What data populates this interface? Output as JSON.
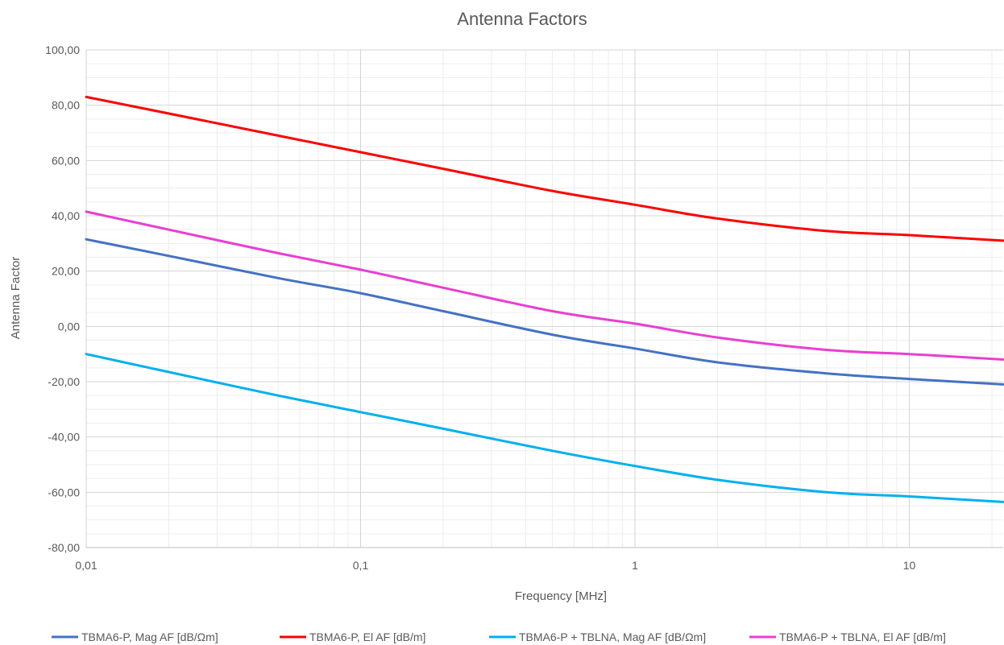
{
  "chart_data": {
    "type": "line",
    "title": "Antenna Factors",
    "xlabel": "Frequency [MHz]",
    "ylabel": "Antenna Factor",
    "x_scale": "log",
    "xlim": [
      0.01,
      22
    ],
    "ylim": [
      -80,
      100
    ],
    "x_ticks": [
      0.01,
      0.1,
      1,
      10
    ],
    "x_tick_labels": [
      "0,01",
      "0,1",
      "1",
      "10"
    ],
    "y_ticks": [
      100,
      80,
      60,
      40,
      20,
      0,
      -20,
      -40,
      -60,
      -80
    ],
    "y_tick_labels": [
      "100,00",
      "80,00",
      "60,00",
      "40,00",
      "20,00",
      "0,00",
      "-20,00",
      "-40,00",
      "-60,00",
      "-80,00"
    ],
    "grid": "major and minor",
    "legend_position": "bottom",
    "series": [
      {
        "name": "TBMA6-P, Mag AF [dB/Ωm]",
        "color": "#4472C4",
        "x": [
          0.01,
          0.02,
          0.05,
          0.1,
          0.2,
          0.5,
          1,
          2,
          5,
          10,
          22
        ],
        "y": [
          31.5,
          25.5,
          17.5,
          12,
          5.5,
          -3,
          -8,
          -13,
          -17,
          -19,
          -21
        ]
      },
      {
        "name": "TBMA6-P, El AF [dB/m]",
        "color": "#FF0000",
        "x": [
          0.01,
          0.02,
          0.05,
          0.1,
          0.2,
          0.5,
          1,
          2,
          5,
          10,
          22
        ],
        "y": [
          83,
          77,
          69,
          63,
          57,
          49,
          44,
          39,
          34.5,
          33,
          31
        ]
      },
      {
        "name": "TBMA6-P + TBLNA, Mag AF [dB/Ωm]",
        "color": "#00B0F0",
        "x": [
          0.01,
          0.02,
          0.05,
          0.1,
          0.2,
          0.5,
          1,
          2,
          5,
          10,
          22
        ],
        "y": [
          -10,
          -16.5,
          -25,
          -31,
          -37,
          -45,
          -50.5,
          -55.5,
          -60,
          -61.5,
          -63.5
        ]
      },
      {
        "name": "TBMA6-P + TBLNA, El AF [dB/m]",
        "color": "#E83FD2",
        "x": [
          0.01,
          0.02,
          0.05,
          0.1,
          0.2,
          0.5,
          1,
          2,
          5,
          10,
          22
        ],
        "y": [
          41.5,
          35,
          26.5,
          20.5,
          14,
          5.5,
          1,
          -4,
          -8.5,
          -10,
          -12
        ]
      }
    ]
  }
}
